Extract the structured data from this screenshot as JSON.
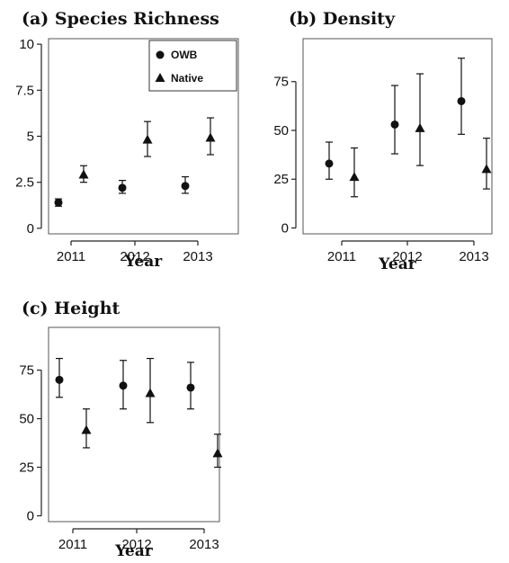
{
  "chart_data": [
    {
      "type": "scatter",
      "title": "(a) Species Richness",
      "xlabel": "Year",
      "ylabel": "",
      "categories": [
        "2011",
        "2012",
        "2013"
      ],
      "ylim": [
        -0.3,
        10.3
      ],
      "yticks": [
        0,
        2.5,
        5,
        7.5,
        10
      ],
      "ytick_labels": [
        "0",
        "2.5",
        "5",
        "7.5",
        "10"
      ],
      "legend": "top-right",
      "grid": false,
      "series": [
        {
          "name": "OWB",
          "marker": "circle",
          "values": [
            1.4,
            2.2,
            2.3
          ],
          "lower": [
            1.2,
            1.9,
            1.9
          ],
          "upper": [
            1.6,
            2.6,
            2.8
          ]
        },
        {
          "name": "Native",
          "marker": "triangle",
          "values": [
            2.9,
            4.8,
            4.9
          ],
          "lower": [
            2.5,
            3.9,
            4.0
          ],
          "upper": [
            3.4,
            5.8,
            6.0
          ]
        }
      ]
    },
    {
      "type": "scatter",
      "title": "(b) Density",
      "xlabel": "Year",
      "ylabel": "",
      "categories": [
        "2011",
        "2012",
        "2013"
      ],
      "ylim": [
        -3,
        97
      ],
      "yticks": [
        0,
        25,
        50,
        75
      ],
      "ytick_labels": [
        "0",
        "25",
        "50",
        "75"
      ],
      "grid": false,
      "series": [
        {
          "name": "OWB",
          "marker": "circle",
          "values": [
            33,
            53,
            65
          ],
          "lower": [
            25,
            38,
            48
          ],
          "upper": [
            44,
            73,
            87
          ]
        },
        {
          "name": "Native",
          "marker": "triangle",
          "values": [
            26,
            51,
            30
          ],
          "lower": [
            16,
            32,
            20
          ],
          "upper": [
            41,
            79,
            46
          ]
        }
      ]
    },
    {
      "type": "scatter",
      "title": "(c) Height",
      "xlabel": "Year",
      "ylabel": "",
      "categories": [
        "2011",
        "2012",
        "2013"
      ],
      "ylim": [
        -3,
        97
      ],
      "yticks": [
        0,
        25,
        50,
        75
      ],
      "ytick_labels": [
        "0",
        "25",
        "50",
        "75"
      ],
      "grid": false,
      "series": [
        {
          "name": "OWB",
          "marker": "circle",
          "values": [
            70,
            67,
            66
          ],
          "lower": [
            61,
            55,
            55
          ],
          "upper": [
            81,
            80,
            79
          ]
        },
        {
          "name": "Native",
          "marker": "triangle",
          "values": [
            44,
            63,
            32
          ],
          "lower": [
            35,
            48,
            25
          ],
          "upper": [
            55,
            81,
            42
          ]
        }
      ]
    }
  ]
}
